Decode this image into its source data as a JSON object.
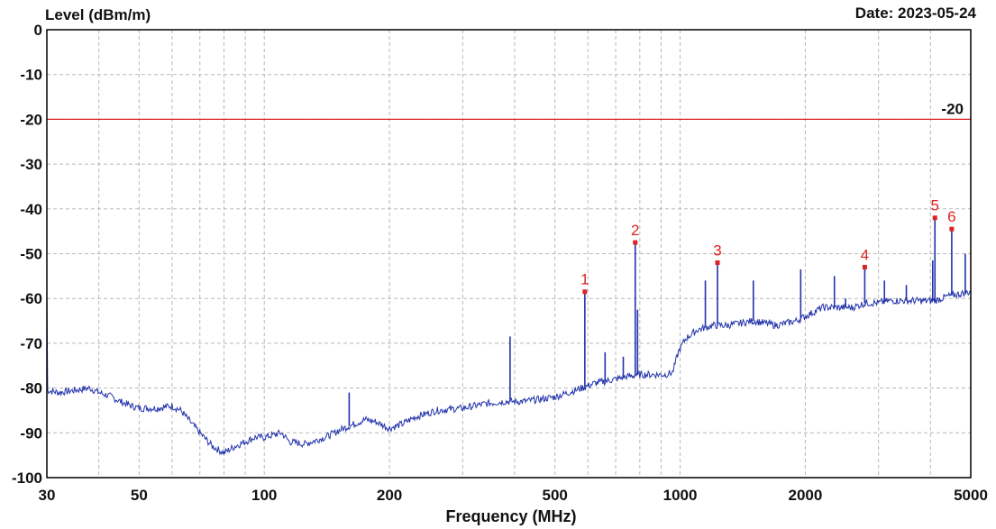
{
  "header": {
    "ylabel": "Level (dBm/m)",
    "date": "Date: 2023-05-24"
  },
  "colors": {
    "trace": "#2233aa",
    "limit": "#dd2222",
    "marker": "#dd2222",
    "grid": "#b8b8b8",
    "frame": "#000000"
  },
  "chart_data": {
    "type": "line",
    "xlabel": "Frequency (MHz)",
    "ylabel": "Level (dBm/m)",
    "xscale": "log",
    "xlim": [
      30,
      5000
    ],
    "ylim": [
      -100,
      0
    ],
    "grid": true,
    "x_ticks": [
      30,
      50,
      100,
      200,
      500,
      1000,
      2000,
      5000
    ],
    "x_tick_labels": [
      "30",
      "50",
      "100",
      "200",
      "500",
      "1000",
      "2000",
      "5000"
    ],
    "y_ticks": [
      0,
      -10,
      -20,
      -30,
      -40,
      -50,
      -60,
      -70,
      -80,
      -90,
      -100
    ],
    "y_tick_labels": [
      "0",
      "-10",
      "-20",
      "-30",
      "-40",
      "-50",
      "-60",
      "-70",
      "-80",
      "-90",
      "-100"
    ],
    "limit_line": {
      "value": -20,
      "label": "-20"
    },
    "series": [
      {
        "points": [
          [
            30,
            -80.5
          ],
          [
            32,
            -81
          ],
          [
            35,
            -80.5
          ],
          [
            38,
            -80
          ],
          [
            40,
            -81
          ],
          [
            43,
            -82
          ],
          [
            45,
            -83
          ],
          [
            48,
            -84
          ],
          [
            50,
            -84.5
          ],
          [
            55,
            -84.5
          ],
          [
            60,
            -84
          ],
          [
            63,
            -85
          ],
          [
            67,
            -88
          ],
          [
            70,
            -90
          ],
          [
            75,
            -93
          ],
          [
            80,
            -94.5
          ],
          [
            85,
            -93
          ],
          [
            90,
            -92
          ],
          [
            95,
            -91
          ],
          [
            100,
            -91
          ],
          [
            110,
            -90
          ],
          [
            115,
            -92
          ],
          [
            125,
            -92.5
          ],
          [
            140,
            -91
          ],
          [
            155,
            -89
          ],
          [
            165,
            -88
          ],
          [
            175,
            -87
          ],
          [
            185,
            -87.5
          ],
          [
            200,
            -89
          ],
          [
            215,
            -88
          ],
          [
            230,
            -86.5
          ],
          [
            260,
            -85
          ],
          [
            300,
            -84.5
          ],
          [
            340,
            -83.5
          ],
          [
            380,
            -83
          ],
          [
            420,
            -83
          ],
          [
            460,
            -82.5
          ],
          [
            500,
            -82
          ],
          [
            540,
            -81
          ],
          [
            580,
            -80
          ],
          [
            620,
            -79
          ],
          [
            660,
            -78.5
          ],
          [
            700,
            -78
          ],
          [
            740,
            -77.5
          ],
          [
            800,
            -77
          ],
          [
            860,
            -77
          ],
          [
            920,
            -77
          ],
          [
            960,
            -76.5
          ],
          [
            990,
            -72
          ],
          [
            1030,
            -69
          ],
          [
            1100,
            -67
          ],
          [
            1200,
            -66
          ],
          [
            1300,
            -66
          ],
          [
            1400,
            -65.5
          ],
          [
            1500,
            -65
          ],
          [
            1600,
            -65.5
          ],
          [
            1700,
            -66
          ],
          [
            1800,
            -65.5
          ],
          [
            1900,
            -65
          ],
          [
            2000,
            -64
          ],
          [
            2200,
            -62
          ],
          [
            2400,
            -62
          ],
          [
            2600,
            -62
          ],
          [
            2800,
            -61
          ],
          [
            3000,
            -61
          ],
          [
            3200,
            -60.5
          ],
          [
            3500,
            -60.5
          ],
          [
            3800,
            -60.5
          ],
          [
            4100,
            -60.5
          ],
          [
            4400,
            -59.5
          ],
          [
            4700,
            -59
          ],
          [
            5000,
            -58.5
          ]
        ],
        "spikes": [
          [
            160,
            -81
          ],
          [
            390,
            -68.5
          ],
          [
            590,
            -58.5
          ],
          [
            660,
            -72
          ],
          [
            730,
            -73
          ],
          [
            780,
            -47.5
          ],
          [
            790,
            -62.5
          ],
          [
            1150,
            -56
          ],
          [
            1230,
            -52
          ],
          [
            1500,
            -56
          ],
          [
            1950,
            -53.5
          ],
          [
            2350,
            -55
          ],
          [
            2500,
            -60
          ],
          [
            2780,
            -53
          ],
          [
            3100,
            -56
          ],
          [
            3500,
            -57
          ],
          [
            4050,
            -51.5
          ],
          [
            4100,
            -42
          ],
          [
            4500,
            -44.5
          ],
          [
            4850,
            -50
          ]
        ]
      }
    ],
    "markers": [
      {
        "label": "1",
        "x": 590,
        "y": -58.5
      },
      {
        "label": "2",
        "x": 780,
        "y": -47.5
      },
      {
        "label": "3",
        "x": 1230,
        "y": -52
      },
      {
        "label": "4",
        "x": 2780,
        "y": -53
      },
      {
        "label": "5",
        "x": 4100,
        "y": -42
      },
      {
        "label": "6",
        "x": 4500,
        "y": -44.5
      }
    ]
  }
}
